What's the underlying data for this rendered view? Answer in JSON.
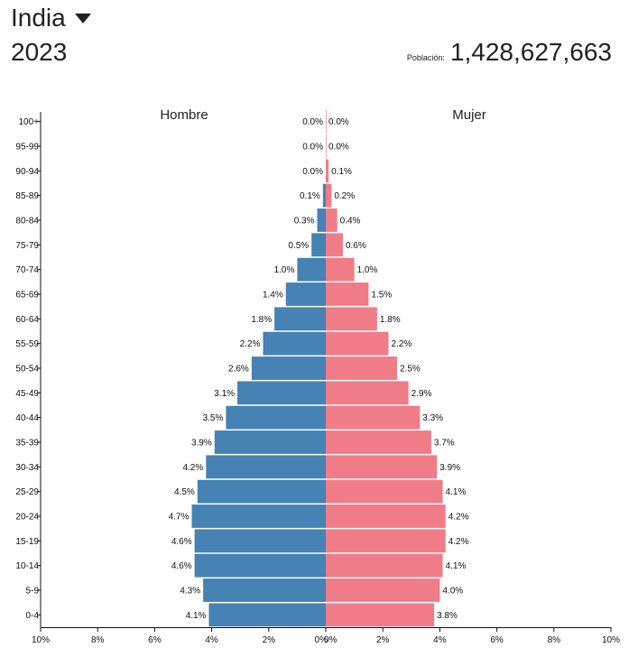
{
  "header": {
    "country": "India",
    "year": "2023",
    "population_label": "Población:",
    "population_value": "1,428,627,663"
  },
  "colors": {
    "male": "#4682b4",
    "female": "#f07c88"
  },
  "chart_data": {
    "type": "bar",
    "orientation": "horizontal-population-pyramid",
    "title": "",
    "series": [
      {
        "name": "Hombre",
        "labels": [
          "4.1%",
          "4.3%",
          "4.6%",
          "4.6%",
          "4.7%",
          "4.5%",
          "4.2%",
          "3.9%",
          "3.5%",
          "3.1%",
          "2.6%",
          "2.2%",
          "1.8%",
          "1.4%",
          "1.0%",
          "0.5%",
          "0.3%",
          "0.1%",
          "0.0%",
          "0.0%",
          "0.0%"
        ],
        "values": [
          4.1,
          4.3,
          4.6,
          4.6,
          4.7,
          4.5,
          4.2,
          3.9,
          3.5,
          3.1,
          2.6,
          2.2,
          1.8,
          1.4,
          1.0,
          0.5,
          0.3,
          0.1,
          0.0,
          0.0,
          0.0
        ]
      },
      {
        "name": "Mujer",
        "labels": [
          "3.8%",
          "4.0%",
          "4.1%",
          "4.2%",
          "4.2%",
          "4.1%",
          "3.9%",
          "3.7%",
          "3.3%",
          "2.9%",
          "2.5%",
          "2.2%",
          "1.8%",
          "1.5%",
          "1.0%",
          "0.6%",
          "0.4%",
          "0.2%",
          "0.1%",
          "0.0%",
          "0.0%"
        ],
        "values": [
          3.8,
          4.0,
          4.1,
          4.2,
          4.2,
          4.1,
          3.9,
          3.7,
          3.3,
          2.9,
          2.5,
          2.2,
          1.8,
          1.5,
          1.0,
          0.6,
          0.4,
          0.2,
          0.1,
          0.0,
          0.0
        ]
      }
    ],
    "categories": [
      "0-4",
      "5-9",
      "10-14",
      "15-19",
      "20-24",
      "25-29",
      "30-34",
      "35-39",
      "40-44",
      "45-49",
      "50-54",
      "55-59",
      "60-64",
      "65-69",
      "70-74",
      "75-79",
      "80-84",
      "85-89",
      "90-94",
      "95-99",
      "100+"
    ],
    "x_ticks": [
      "10%",
      "8%",
      "6%",
      "4%",
      "2%",
      "0%",
      "0%",
      "2%",
      "4%",
      "6%",
      "8%",
      "10%"
    ],
    "xlim": [
      -10,
      10
    ],
    "xlabel": "",
    "ylabel": ""
  }
}
